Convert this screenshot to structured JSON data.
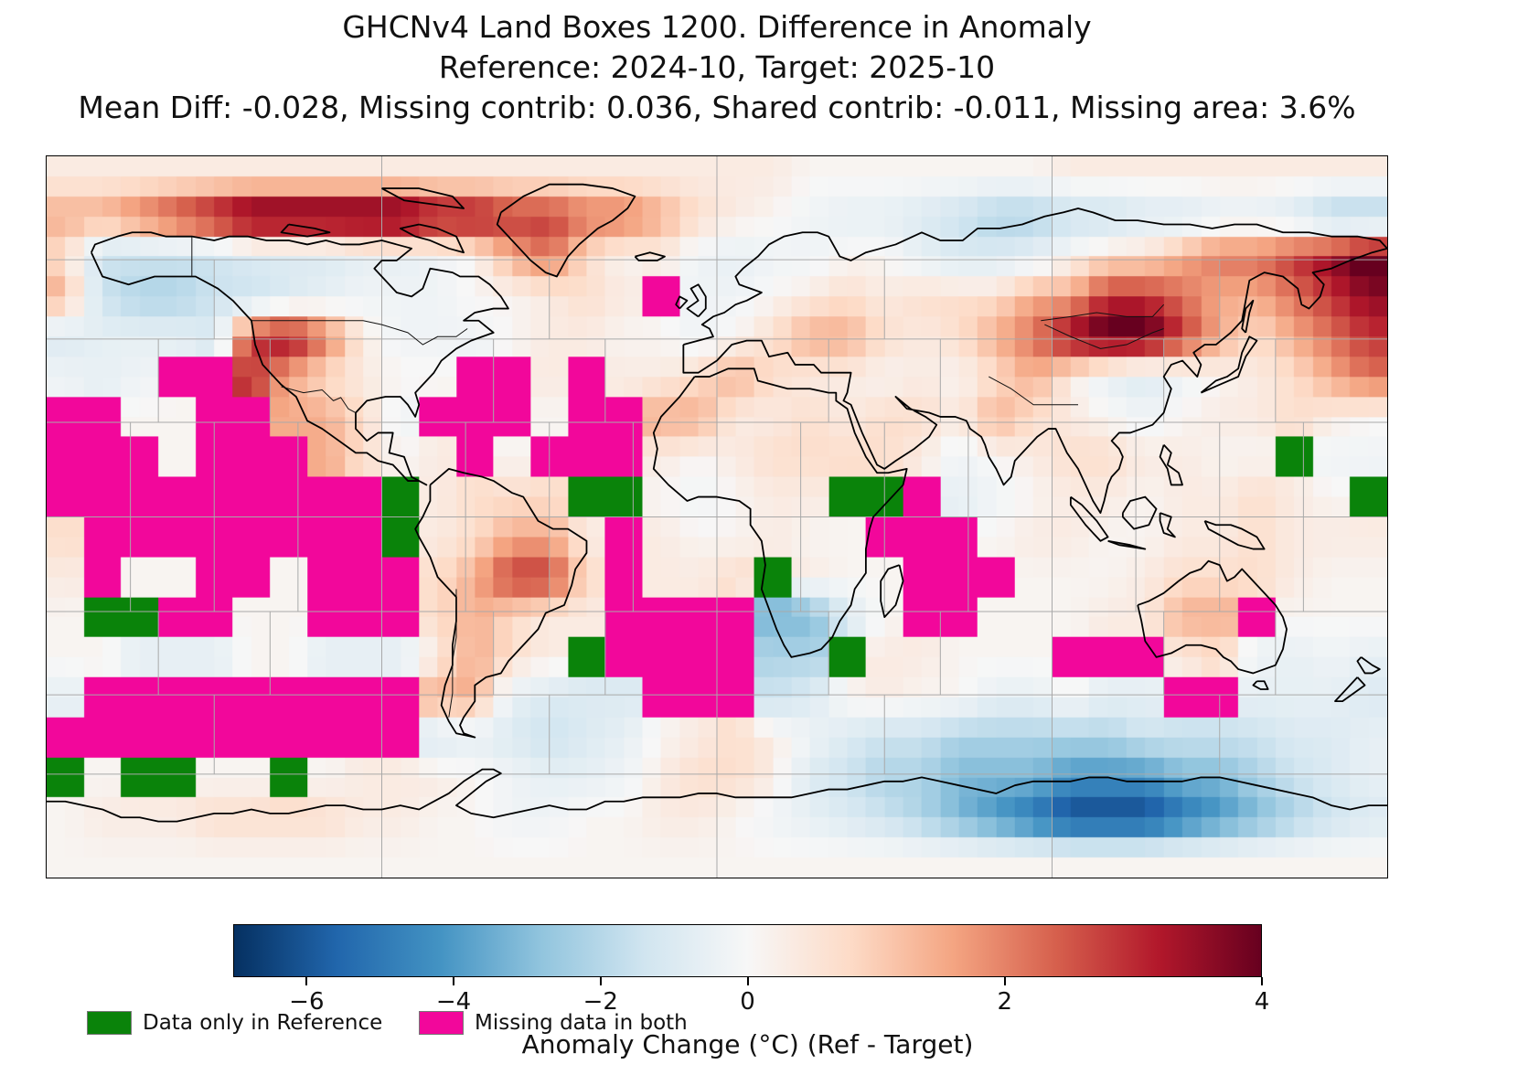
{
  "title": {
    "line1": "GHCNv4 Land Boxes 1200. Difference in Anomaly",
    "line2": "Reference: 2024-10, Target: 2025-10",
    "line3": "Mean Diff: -0.028, Missing contrib: 0.036, Shared contrib: -0.011, Missing area: 3.6%"
  },
  "stats": {
    "mean_diff": -0.028,
    "missing_contrib": 0.036,
    "shared_contrib": -0.011,
    "missing_area": "3.6%",
    "reference": "2024-10",
    "target": "2025-10"
  },
  "colorbar": {
    "label": "Anomaly Change (°C) (Ref - Target)",
    "tick_labels": [
      "−6",
      "−4",
      "−2",
      "0",
      "2",
      "4"
    ],
    "tick_values": [
      -6,
      -4,
      -2,
      0,
      2,
      4
    ],
    "vmin": -7,
    "vcenter": 0,
    "vmax": 4,
    "colormap": "RdBu_r",
    "colormap_stops": [
      "#053061",
      "#2166ac",
      "#4393c3",
      "#92c5de",
      "#d1e5f0",
      "#f7f7f7",
      "#fddbc7",
      "#f4a582",
      "#d6604d",
      "#b2182b",
      "#67001f"
    ]
  },
  "legend": {
    "items": [
      {
        "label": "Data only in Reference",
        "color": "#0a830a"
      },
      {
        "label": "Missing data in both",
        "color": "#f2079b"
      }
    ]
  },
  "chart_data": {
    "type": "heatmap",
    "projection": "equirectangular",
    "lon_range": [
      -180,
      180
    ],
    "lat_range": [
      90,
      -90
    ],
    "grid_resolution_deg": 10,
    "value_units": "°C (Ref - Target anomaly difference)",
    "special_codes": {
      "M": "missing data in both",
      "G": "data only in reference"
    },
    "code_values": {
      "a": -6.5,
      "b": -5.2,
      "c": -4.2,
      "d": -3.2,
      "e": -2.2,
      "f": -1.5,
      "g": -1.0,
      "h": -0.6,
      "i": -0.3,
      "j": -0.12,
      "k": 0.1,
      "l": 0.35,
      "m": 0.7,
      "n": 1.0,
      "o": 1.5,
      "p": 2.2,
      "q": 2.9,
      "r": 3.6,
      "s": 4.4
    },
    "grid_rows_90N_to_90S": [
      "llllllllllllllllllllkkkkkkklllllllll",
      "oopqrsssssrrqqppomlkihhgfeeffgghhgee",
      "mffffggghhikopmklihiikkhgghkmmoppqrs",
      "ofeeffghiiikklmlMiiklmlmmmooqqpoopqr",
      "ghhhgqrpliiikllkkikmoomlmoprssqomopq",
      "ihiMMqomlkkMMlMllmomllklkmolhgiklmop",
      "MMkkMMoomiMMMkMMoollmlmmlomlkikllmlk",
      "MMMkMMMomklMkMMMlklmmmmliklmmllkkGii",
      "MMMMMMMMMGlmmmGGkiklLGGMhikllkllmlkG",
      "mMMMMMMMMGlmoolMlkklkkMMMkllkkllmlll",
      "lMkkMMkMMMmoqqmMllmGlkkMMMkkklmmmlkk",
      "kGGMMkkMMMmomllMMMMddgkMMkkkllooMkkk",
      "kkhhhkkhhhlomlGMMMMeeGllkkkMMMlmihih",
      "hMMMMMMMMMoohgggMMMfgklkkhhkhhMMhhhg",
      "MMMMMMMMMMghgfghklmligffeeeeeffffggh",
      "GkGGkkGklllkihhilmmlgfeedddcccddefgh",
      "klllmmmmllkkiikkllkihgfedcbaaabcdefg",
      "kkkkkkkkkkkkkkkkkkkkkkkkkkkkkkkkkkkk"
    ],
    "graticule": {
      "type": "equal-area boxes (8 latitude bands)",
      "lat_boundaries": [
        90,
        64.2,
        44.4,
        23.6,
        0,
        -23.6,
        -44.4,
        -64.2,
        -90
      ],
      "boxes_per_band": [
        4,
        8,
        12,
        16,
        16,
        12,
        8,
        4
      ]
    },
    "notable_features": [
      "dark red maxima: Mongolia/Lake Baikal, NE Siberia/Chukotka, Canadian Arctic 80N band, western US",
      "dark blue minima: East Antarctica coast (~90-120E), southern Africa",
      "magenta missing-data blocks over most ocean basins",
      "green reference-only cells: Horn of Africa, Namibia coast, equatorial Atlantic, SW Pacific, Antarctic coastal ring"
    ]
  }
}
